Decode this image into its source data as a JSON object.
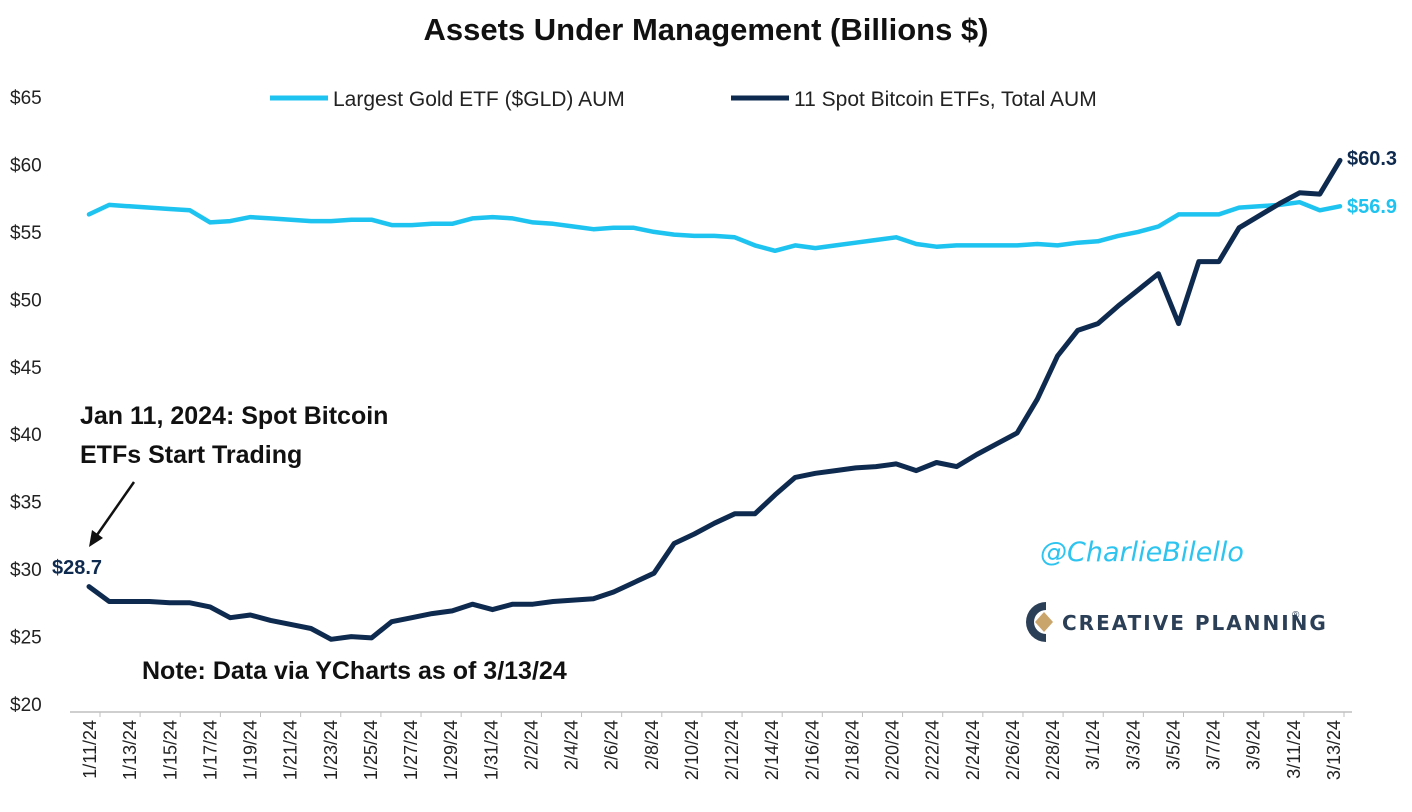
{
  "chart_data": {
    "type": "line",
    "title": "Assets Under Management (Billions $)",
    "xlabel": "",
    "ylabel": "",
    "ylim": [
      20,
      65
    ],
    "y_ticks": [
      "$20",
      "$25",
      "$30",
      "$35",
      "$40",
      "$45",
      "$50",
      "$55",
      "$60",
      "$65"
    ],
    "y_tick_values": [
      20,
      25,
      30,
      35,
      40,
      45,
      50,
      55,
      60,
      65
    ],
    "x_tick_labels": [
      "1/11/24",
      "1/13/24",
      "1/15/24",
      "1/17/24",
      "1/19/24",
      "1/21/24",
      "1/23/24",
      "1/25/24",
      "1/27/24",
      "1/29/24",
      "1/31/24",
      "2/2/24",
      "2/4/24",
      "2/6/24",
      "2/8/24",
      "2/10/24",
      "2/12/24",
      "2/14/24",
      "2/16/24",
      "2/18/24",
      "2/20/24",
      "2/22/24",
      "2/24/24",
      "2/26/24",
      "2/28/24",
      "3/1/24",
      "3/3/24",
      "3/5/24",
      "3/7/24",
      "3/9/24",
      "3/11/24",
      "3/13/24"
    ],
    "grid": false,
    "legend_position": "top",
    "series": [
      {
        "name": "Largest Gold ETF ($GLD) AUM",
        "color": "#1ec3f0",
        "values": [
          56.3,
          57.0,
          56.9,
          56.8,
          56.7,
          56.6,
          55.7,
          55.8,
          56.1,
          56.0,
          55.9,
          55.8,
          55.8,
          55.9,
          55.9,
          55.5,
          55.5,
          55.6,
          55.6,
          56.0,
          56.1,
          56.0,
          55.7,
          55.6,
          55.4,
          55.2,
          55.3,
          55.3,
          55.0,
          54.8,
          54.7,
          54.7,
          54.6,
          54.0,
          53.6,
          54.0,
          53.8,
          54.0,
          54.2,
          54.4,
          54.6,
          54.1,
          53.9,
          54.0,
          54.0,
          54.0,
          54.0,
          54.1,
          54.0,
          54.2,
          54.3,
          54.7,
          55.0,
          55.4,
          56.3,
          56.3,
          56.3,
          56.8,
          56.9,
          57.0,
          57.2,
          56.6,
          56.9
        ]
      },
      {
        "name": "11 Spot Bitcoin ETFs, Total AUM",
        "color": "#0e2a4f",
        "values": [
          28.7,
          27.6,
          27.6,
          27.6,
          27.5,
          27.5,
          27.2,
          26.4,
          26.6,
          26.2,
          25.9,
          25.6,
          24.8,
          25.0,
          24.9,
          26.1,
          26.4,
          26.7,
          26.9,
          27.4,
          27.0,
          27.4,
          27.4,
          27.6,
          27.7,
          27.8,
          28.3,
          29.0,
          29.7,
          31.9,
          32.6,
          33.4,
          34.1,
          34.1,
          35.5,
          36.8,
          37.1,
          37.3,
          37.5,
          37.6,
          37.8,
          37.3,
          37.9,
          37.6,
          38.5,
          39.3,
          40.1,
          42.6,
          45.8,
          47.7,
          48.2,
          49.5,
          50.7,
          51.9,
          48.2,
          52.8,
          52.8,
          55.3,
          56.2,
          57.1,
          57.9,
          57.8,
          60.3
        ]
      }
    ],
    "end_labels": {
      "gold": "$56.9",
      "bitcoin": "$60.3"
    },
    "start_label": "$28.7",
    "annotations": {
      "launch_line1": "Jan 11, 2024: Spot Bitcoin",
      "launch_line2": "ETFs Start Trading",
      "note": "Note: Data via YCharts as of 3/13/24"
    },
    "watermark": "@CharlieBilello",
    "brand": "CREATIVE PLANNING",
    "brand_mark": "®",
    "brand_colors": {
      "dark": "#2b3f57",
      "accent": "#c9a46b"
    }
  }
}
